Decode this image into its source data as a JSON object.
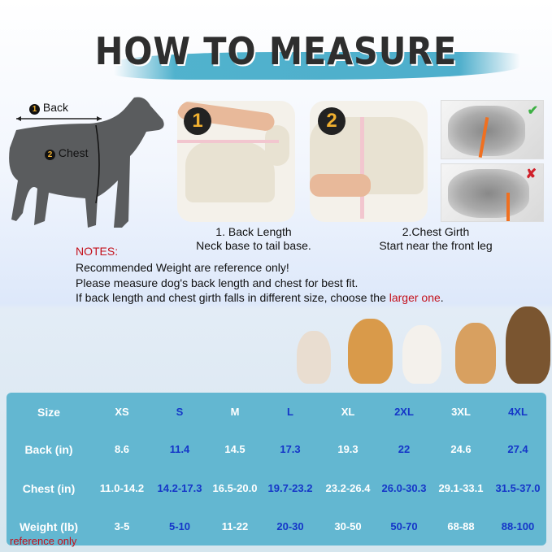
{
  "title": "HOW TO MEASURE",
  "diagram": {
    "back_label": "Back",
    "back_num": "1",
    "chest_label": "Chest",
    "chest_num": "2"
  },
  "steps": [
    {
      "badge": "1",
      "title": "1. Back Length",
      "desc": "Neck base to tail base."
    },
    {
      "badge": "2",
      "title": "2.Chest Girth",
      "desc": "Start near the front leg"
    }
  ],
  "examples": [
    {
      "mark": "✔",
      "color": "#3cb043"
    },
    {
      "mark": "✘",
      "color": "#d0202a"
    }
  ],
  "notes": {
    "heading": "NOTES:",
    "lines": [
      "Recommended Weight are reference only!",
      "Please measure dog's back length and chest for best fit."
    ],
    "line3_prefix": "If back length and chest girth falls in different size, choose the ",
    "line3_highlight": "larger one",
    "line3_suffix": "."
  },
  "size_table": {
    "rows": [
      {
        "label": "Size",
        "values": [
          "XS",
          "S",
          "M",
          "L",
          "XL",
          "2XL",
          "3XL",
          "4XL"
        ]
      },
      {
        "label": "Back  (in)",
        "values": [
          "8.6",
          "11.4",
          "14.5",
          "17.3",
          "19.3",
          "22",
          "24.6",
          "27.4"
        ]
      },
      {
        "label": "Chest  (in)",
        "values": [
          "11.0-14.2",
          "14.2-17.3",
          "16.5-20.0",
          "19.7-23.2",
          "23.2-26.4",
          "26.0-30.3",
          "29.1-33.1",
          "31.5-37.0"
        ]
      },
      {
        "label": "Weight  (lb)",
        "values": [
          "3-5",
          "5-10",
          "11-22",
          "20-30",
          "30-50",
          "50-70",
          "68-88",
          "88-100"
        ]
      }
    ],
    "footnote": "reference only",
    "colors": {
      "background": "#63b7d1",
      "text": "#ffffff",
      "alt_text": "#1536c8"
    }
  }
}
